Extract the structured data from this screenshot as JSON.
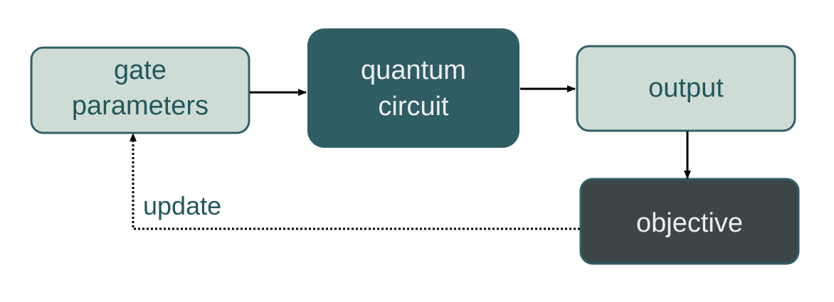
{
  "nodes": {
    "gate_parameters": {
      "line1": "gate",
      "line2": "parameters"
    },
    "quantum_circuit": {
      "line1": "quantum",
      "line2": "circuit"
    },
    "output": {
      "label": "output"
    },
    "objective": {
      "label": "objective"
    }
  },
  "edges": {
    "update_label": "update"
  },
  "colors": {
    "light_box_fill": "#cfdcd5",
    "light_box_stroke": "#2f6068",
    "teal_box_fill": "#2f5d66",
    "dark_box_fill": "#3d4647",
    "dark_box_stroke": "#2f5d66",
    "teal_text": "#23575d",
    "light_text": "#eeeeee",
    "arrow": "#000000"
  }
}
